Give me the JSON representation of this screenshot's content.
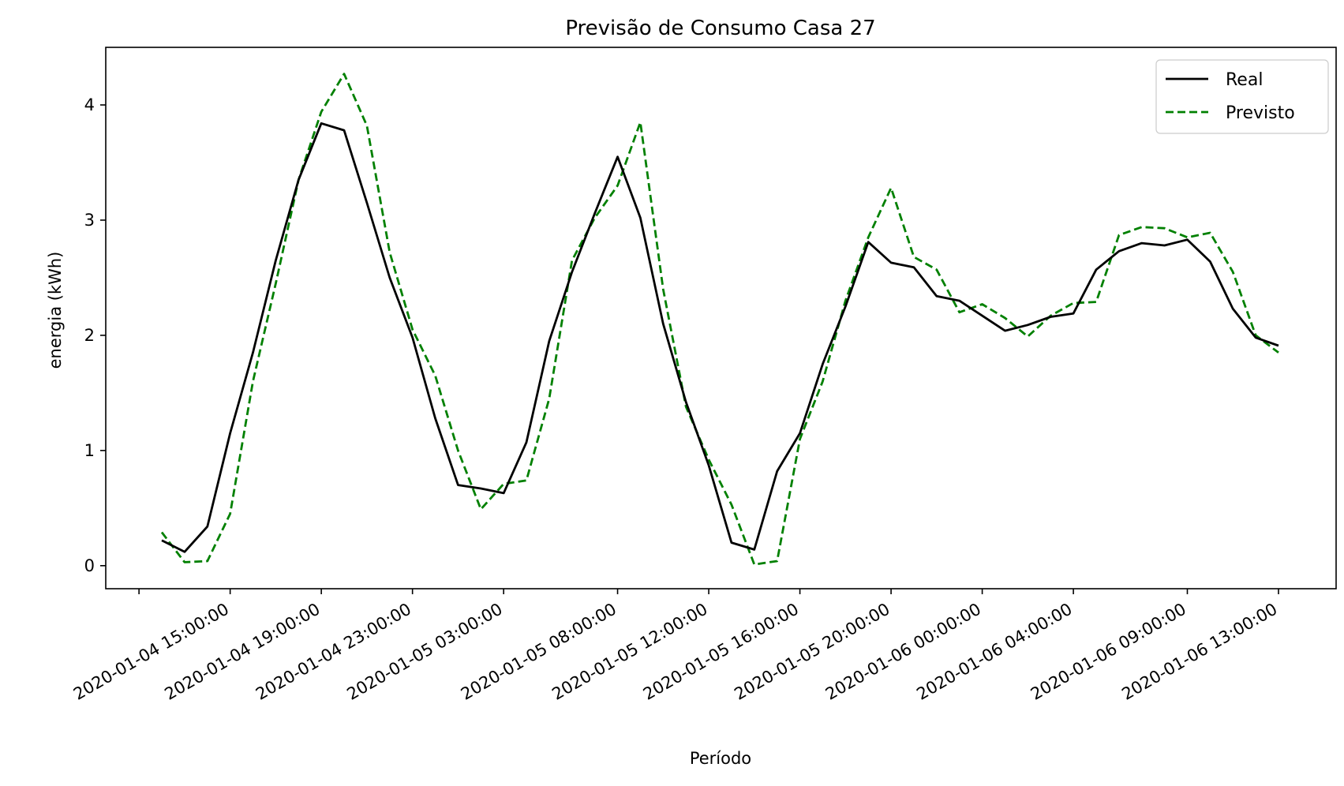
{
  "chart_data": {
    "type": "line",
    "title": "Previsão de Consumo Casa 27",
    "xlabel": "Período",
    "ylabel": "energia (kWh)",
    "ylim": [
      -0.2,
      4.5
    ],
    "yticks": [
      0,
      1,
      2,
      3,
      4
    ],
    "grid": false,
    "legend_position": "top-right",
    "x_tick_labels": [
      "2020-01-04 15:00:00",
      "2020-01-04 19:00:00",
      "2020-01-04 23:00:00",
      "2020-01-05 03:00:00",
      "2020-01-05 08:00:00",
      "2020-01-05 12:00:00",
      "2020-01-05 16:00:00",
      "2020-01-05 20:00:00",
      "2020-01-06 00:00:00",
      "2020-01-06 04:00:00",
      "2020-01-06 09:00:00",
      "2020-01-06 13:00:00"
    ],
    "x": [
      "2020-01-04 12:00",
      "2020-01-04 13:00",
      "2020-01-04 14:00",
      "2020-01-04 15:00",
      "2020-01-04 16:00",
      "2020-01-04 17:00",
      "2020-01-04 18:00",
      "2020-01-04 19:00",
      "2020-01-04 20:00",
      "2020-01-04 21:00",
      "2020-01-04 22:00",
      "2020-01-04 23:00",
      "2020-01-05 00:00",
      "2020-01-05 01:00",
      "2020-01-05 02:00",
      "2020-01-05 03:00",
      "2020-01-05 04:00",
      "2020-01-05 05:00",
      "2020-01-05 06:00",
      "2020-01-05 07:00",
      "2020-01-05 08:00",
      "2020-01-05 09:00",
      "2020-01-05 10:00",
      "2020-01-05 11:00",
      "2020-01-05 12:00",
      "2020-01-05 13:00",
      "2020-01-05 14:00",
      "2020-01-05 15:00",
      "2020-01-05 16:00",
      "2020-01-05 17:00",
      "2020-01-05 18:00",
      "2020-01-05 19:00",
      "2020-01-05 20:00",
      "2020-01-05 21:00",
      "2020-01-05 22:00",
      "2020-01-05 23:00",
      "2020-01-06 00:00",
      "2020-01-06 01:00",
      "2020-01-06 02:00",
      "2020-01-06 03:00",
      "2020-01-06 04:00",
      "2020-01-06 05:00",
      "2020-01-06 06:00",
      "2020-01-06 07:00",
      "2020-01-06 08:00",
      "2020-01-06 09:00",
      "2020-01-06 10:00",
      "2020-01-06 11:00",
      "2020-01-06 12:00",
      "2020-01-06 13:00"
    ],
    "series": [
      {
        "name": "Real",
        "color": "#000000",
        "dash": "solid",
        "values": [
          0.22,
          0.12,
          0.34,
          1.15,
          1.85,
          2.65,
          3.35,
          3.84,
          3.78,
          3.15,
          2.5,
          1.98,
          1.28,
          0.7,
          0.67,
          0.63,
          1.07,
          1.95,
          2.55,
          3.06,
          3.55,
          3.02,
          2.1,
          1.42,
          0.87,
          0.2,
          0.14,
          0.82,
          1.15,
          1.75,
          2.25,
          2.81,
          2.63,
          2.59,
          2.34,
          2.3,
          2.17,
          2.04,
          2.09,
          2.16,
          2.19,
          2.57,
          2.73,
          2.8,
          2.78,
          2.83,
          2.64,
          2.23,
          1.98,
          1.91
        ]
      },
      {
        "name": "Previsto",
        "color": "#008000",
        "dash": "dashed",
        "values": [
          0.29,
          0.03,
          0.04,
          0.45,
          1.6,
          2.45,
          3.35,
          3.94,
          4.27,
          3.82,
          2.72,
          2.05,
          1.65,
          1.0,
          0.49,
          0.71,
          0.74,
          1.45,
          2.65,
          3.02,
          3.3,
          3.85,
          2.4,
          1.38,
          0.92,
          0.53,
          0.01,
          0.04,
          1.1,
          1.6,
          2.3,
          2.85,
          3.28,
          2.68,
          2.57,
          2.2,
          2.27,
          2.15,
          1.99,
          2.17,
          2.28,
          2.29,
          2.87,
          2.94,
          2.93,
          2.85,
          2.89,
          2.55,
          2.0,
          1.85
        ]
      }
    ]
  }
}
